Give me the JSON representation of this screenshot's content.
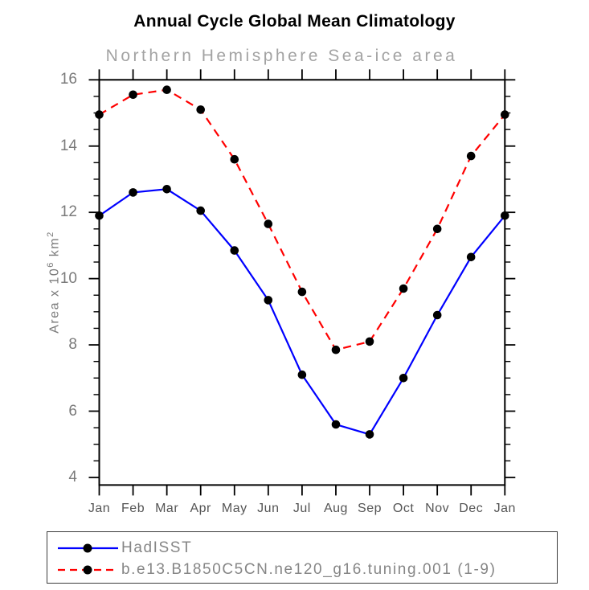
{
  "chart_data": {
    "type": "line",
    "title": "Annual Cycle Global Mean Climatology",
    "subtitle": "Northern Hemisphere Sea-ice area",
    "ylabel": {
      "prefix": "Area x 10",
      "sup1": "6",
      "mid": " km",
      "sup2": "2"
    },
    "xlabel": "",
    "categories": [
      "Jan",
      "Feb",
      "Mar",
      "Apr",
      "May",
      "Jun",
      "Jul",
      "Aug",
      "Sep",
      "Oct",
      "Nov",
      "Dec",
      "Jan"
    ],
    "y_ticks": [
      4,
      6,
      8,
      10,
      12,
      14,
      16
    ],
    "y_minor_step": 0.5,
    "ylim": [
      3.77,
      16
    ],
    "grid": false,
    "legend_position": "bottom",
    "frame_color": "#000000",
    "series": [
      {
        "name": "HadISST",
        "color": "#0000ff",
        "style": "solid",
        "marker": "circle",
        "marker_color": "#000000",
        "values": [
          11.9,
          12.6,
          12.7,
          12.05,
          10.85,
          9.35,
          7.1,
          5.6,
          5.3,
          7.0,
          8.9,
          10.65,
          11.9
        ]
      },
      {
        "name": "b.e13.B1850C5CN.ne120_g16.tuning.001 (1-9)",
        "color": "#ff0000",
        "style": "dashed",
        "marker": "circle",
        "marker_color": "#000000",
        "values": [
          14.95,
          15.55,
          15.7,
          15.1,
          13.6,
          11.65,
          9.6,
          7.85,
          8.1,
          9.7,
          11.5,
          13.7,
          14.95
        ]
      }
    ]
  }
}
